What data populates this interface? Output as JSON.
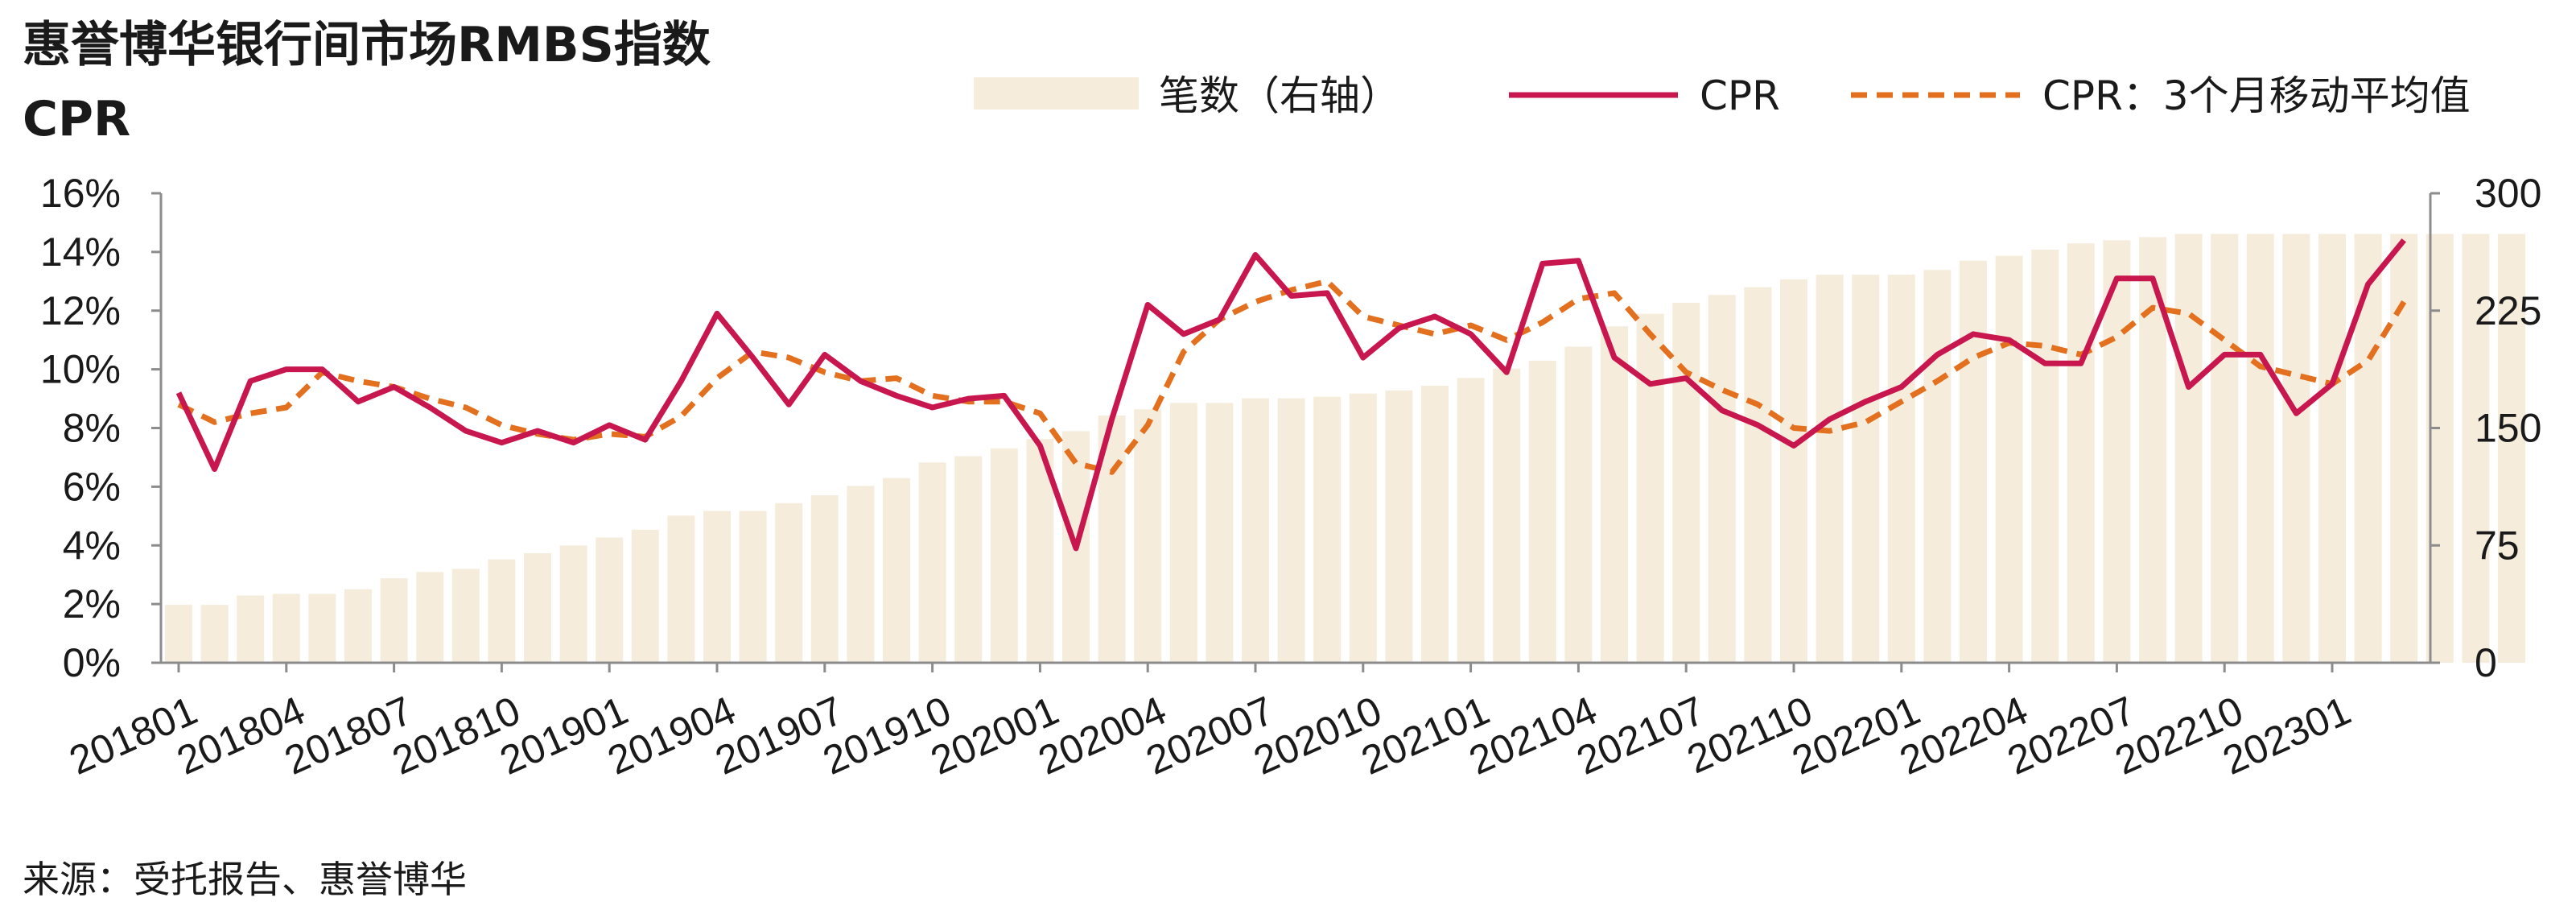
{
  "title_line1": "惠誉博华银行间市场RMBS指数",
  "title_line2": "CPR",
  "source": "来源：受托报告、惠誉博华",
  "legend": {
    "bars": "笔数（右轴）",
    "cpr": "CPR",
    "ma": "CPR：3个月移动平均值"
  },
  "colors": {
    "bars": "#f5ecdc",
    "cpr": "#c8174f",
    "ma": "#e3701f",
    "axis": "#8c8c8c",
    "text": "#1a1a1a"
  },
  "chart_data": {
    "type": "bar+line",
    "left_axis": {
      "ticks": [
        "0%",
        "2%",
        "4%",
        "6%",
        "8%",
        "10%",
        "12%",
        "14%",
        "16%"
      ],
      "ylim": [
        0,
        16
      ]
    },
    "right_axis": {
      "ticks": [
        "0",
        "75",
        "150",
        "225",
        "300"
      ],
      "ylim": [
        0,
        300
      ]
    },
    "x_tick_labels": [
      "201801",
      "201804",
      "201807",
      "201810",
      "201901",
      "201904",
      "201907",
      "201910",
      "202001",
      "202004",
      "202007",
      "202010",
      "202101",
      "202104",
      "202107",
      "202110",
      "202201",
      "202204",
      "202207",
      "202210",
      "202301"
    ],
    "grid": false,
    "legend_position": "top",
    "bar_series": {
      "name": "笔数（右轴）",
      "values": [
        37,
        37,
        43,
        44,
        44,
        47,
        54,
        58,
        60,
        66,
        70,
        75,
        80,
        85,
        94,
        97,
        97,
        102,
        107,
        113,
        118,
        128,
        132,
        137,
        143,
        148,
        158,
        162,
        166,
        166,
        169,
        169,
        170,
        172,
        174,
        177,
        182,
        188,
        193,
        202,
        215,
        223,
        230,
        235,
        240,
        245,
        248,
        248,
        248,
        251,
        257,
        260,
        264,
        268,
        270,
        272,
        274,
        274,
        274,
        274,
        274,
        274,
        274,
        274,
        274,
        274
      ]
    },
    "line_series": [
      {
        "name": "CPR",
        "values": [
          9.2,
          6.6,
          9.6,
          10.0,
          10.0,
          8.9,
          9.4,
          8.7,
          7.9,
          7.5,
          7.9,
          7.5,
          8.1,
          7.6,
          9.6,
          11.9,
          10.4,
          8.8,
          10.5,
          9.6,
          9.1,
          8.7,
          9.0,
          9.1,
          7.4,
          3.9,
          8.3,
          12.2,
          11.2,
          11.7,
          13.9,
          12.5,
          12.6,
          10.4,
          11.4,
          11.8,
          11.2,
          9.9,
          13.6,
          13.7,
          10.4,
          9.5,
          9.7,
          8.6,
          8.1,
          7.4,
          8.3,
          8.9,
          9.4,
          10.5,
          11.2,
          11.0,
          10.2,
          10.2,
          13.1,
          13.1,
          9.4,
          10.5,
          10.5,
          8.5,
          9.5,
          12.9,
          14.4
        ]
      },
      {
        "name": "CPR：3个月移动平均值",
        "values": [
          8.8,
          8.2,
          8.5,
          8.7,
          9.9,
          9.6,
          9.4,
          9.0,
          8.7,
          8.1,
          7.8,
          7.6,
          7.8,
          7.7,
          8.4,
          9.7,
          10.6,
          10.4,
          9.9,
          9.6,
          9.7,
          9.1,
          8.9,
          8.9,
          8.5,
          6.8,
          6.5,
          8.1,
          10.6,
          11.7,
          12.3,
          12.7,
          13.0,
          11.8,
          11.5,
          11.2,
          11.5,
          11.0,
          11.6,
          12.4,
          12.6,
          11.2,
          9.9,
          9.3,
          8.8,
          8.0,
          7.9,
          8.2,
          8.9,
          9.6,
          10.4,
          10.9,
          10.8,
          10.5,
          11.1,
          12.1,
          11.9,
          11.0,
          10.1,
          9.8,
          9.5,
          10.3,
          12.3
        ]
      }
    ]
  }
}
